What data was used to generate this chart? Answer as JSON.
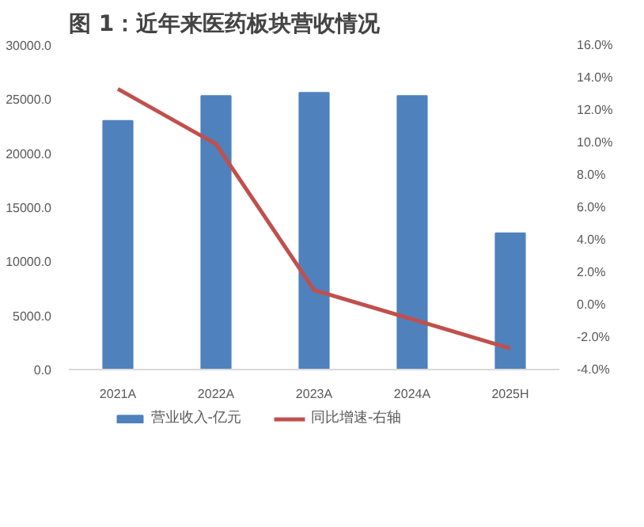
{
  "chart_data": {
    "type": "bar",
    "title": "图 1：近年来医药板块营收情况",
    "categories": [
      "2021A",
      "2022A",
      "2023A",
      "2024A",
      "2025H"
    ],
    "series": [
      {
        "name": "营业收入-亿元",
        "color": "#4f81bd",
        "values": [
          23000,
          25300,
          25600,
          25300,
          12600
        ]
      },
      {
        "name": "同比增速-右轴",
        "type": "line",
        "axis": "y2",
        "color": "#c0504d",
        "values": [
          13.3,
          9.9,
          0.9,
          -0.9,
          -2.7
        ]
      }
    ],
    "ylim": [
      0,
      30000
    ],
    "yticks": [
      {
        "value": 0,
        "label": "0.0"
      },
      {
        "value": 5000,
        "label": "5000.0"
      },
      {
        "value": 10000,
        "label": "10000.0"
      },
      {
        "value": 15000,
        "label": "15000.0"
      },
      {
        "value": 20000,
        "label": "20000.0"
      },
      {
        "value": 25000,
        "label": "25000.0"
      },
      {
        "value": 30000,
        "label": "30000.0"
      }
    ],
    "y2lim": [
      -4,
      16
    ],
    "y2ticks": [
      {
        "value": -4,
        "label": "-4.0%"
      },
      {
        "value": -2,
        "label": "-2.0%"
      },
      {
        "value": 0,
        "label": "0.0%"
      },
      {
        "value": 2,
        "label": "2.0%"
      },
      {
        "value": 4,
        "label": "4.0%"
      },
      {
        "value": 6,
        "label": "6.0%"
      },
      {
        "value": 8,
        "label": "8.0%"
      },
      {
        "value": 10,
        "label": "10.0%"
      },
      {
        "value": 12,
        "label": "12.0%"
      },
      {
        "value": 14,
        "label": "14.0%"
      },
      {
        "value": 16,
        "label": "16.0%"
      }
    ],
    "grid": false,
    "legend": "bottom",
    "marker": "none",
    "line_style": "solid"
  }
}
